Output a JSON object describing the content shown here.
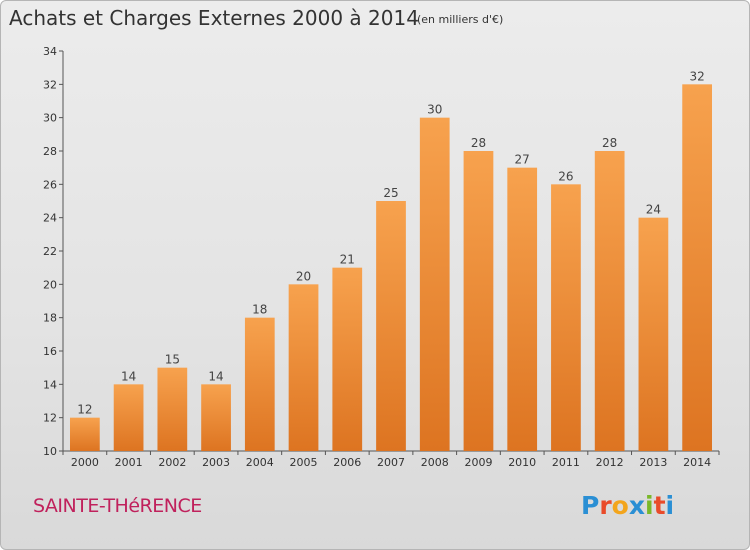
{
  "header": {
    "title": "Achats et Charges Externes 2000 à 2014",
    "subtitle": "(en milliers d'€)"
  },
  "footer": {
    "town": "SAINTE-THéRENCE",
    "logo": "Proxiti"
  },
  "colors": {
    "bar_top": "#f7a24e",
    "bar_bottom": "#dd7421",
    "town": "#c0215c"
  },
  "chart_data": {
    "type": "bar",
    "title": "Achats et Charges Externes 2000 à 2014",
    "subtitle": "(en milliers d'€)",
    "xlabel": "",
    "ylabel": "",
    "categories": [
      "2000",
      "2001",
      "2002",
      "2003",
      "2004",
      "2005",
      "2006",
      "2007",
      "2008",
      "2009",
      "2010",
      "2011",
      "2012",
      "2013",
      "2014"
    ],
    "values": [
      12,
      14,
      15,
      14,
      18,
      20,
      21,
      25,
      30,
      28,
      27,
      26,
      28,
      24,
      32
    ],
    "ylim": [
      10,
      34
    ],
    "yticks": [
      10,
      12,
      14,
      16,
      18,
      20,
      22,
      24,
      26,
      28,
      30,
      32,
      34
    ],
    "grid": false,
    "legend": "none"
  }
}
